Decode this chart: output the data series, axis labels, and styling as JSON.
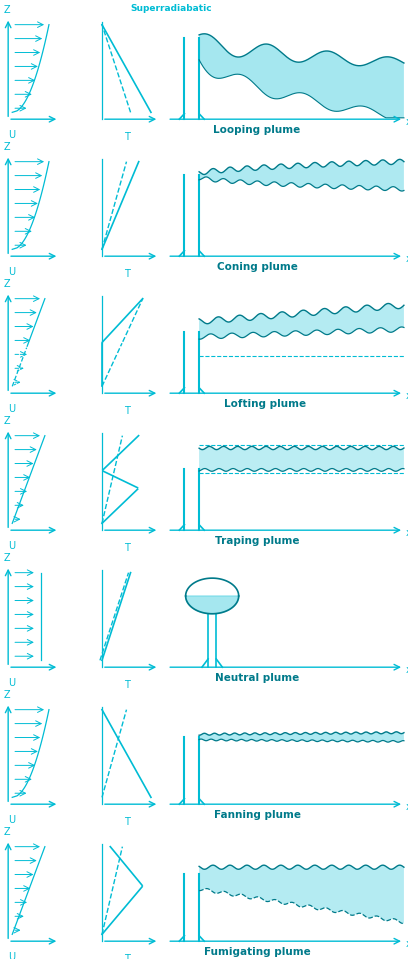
{
  "cyan": "#00BCD4",
  "cyan_dark": "#007A8A",
  "cyan_light": "#B2EBF2",
  "cyan_mid": "#4DD0E1",
  "bg": "#ffffff",
  "plume_names": [
    "Looping plume",
    "Coning plume",
    "Lofting plume",
    "Traping plume",
    "Neutral plume",
    "Fanning plume",
    "Fumigating plume"
  ],
  "n_panels": 7
}
